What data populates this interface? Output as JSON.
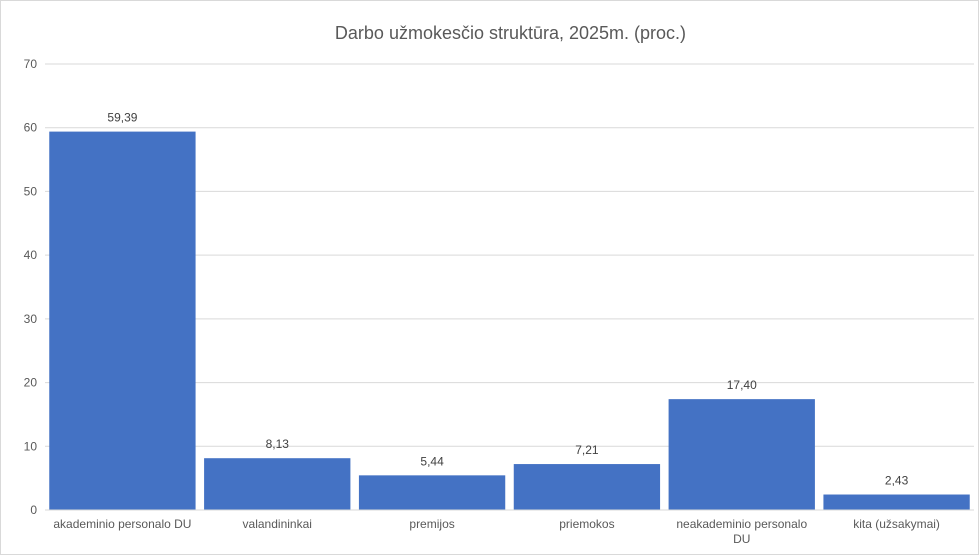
{
  "chart_data": {
    "type": "bar",
    "title": "Darbo užmokesčio struktūra, 2025m. (proc.)",
    "xlabel": "",
    "ylabel": "",
    "ylim": [
      0,
      70
    ],
    "yticks": [
      0,
      10,
      20,
      30,
      40,
      50,
      60,
      70
    ],
    "categories": [
      [
        "akademinio personalo DU"
      ],
      [
        "valandininkai"
      ],
      [
        "premijos"
      ],
      [
        "priemokos"
      ],
      [
        "neakademinio personalo",
        "DU"
      ],
      [
        "kita (užsakymai)"
      ]
    ],
    "values": [
      59.39,
      8.13,
      5.44,
      7.21,
      17.4,
      2.43
    ],
    "data_labels": [
      "59,39",
      "8,13",
      "5,44",
      "7,21",
      "17,40",
      "2,43"
    ],
    "grid": true,
    "legend": "none",
    "bar_color": "#4472c4"
  }
}
